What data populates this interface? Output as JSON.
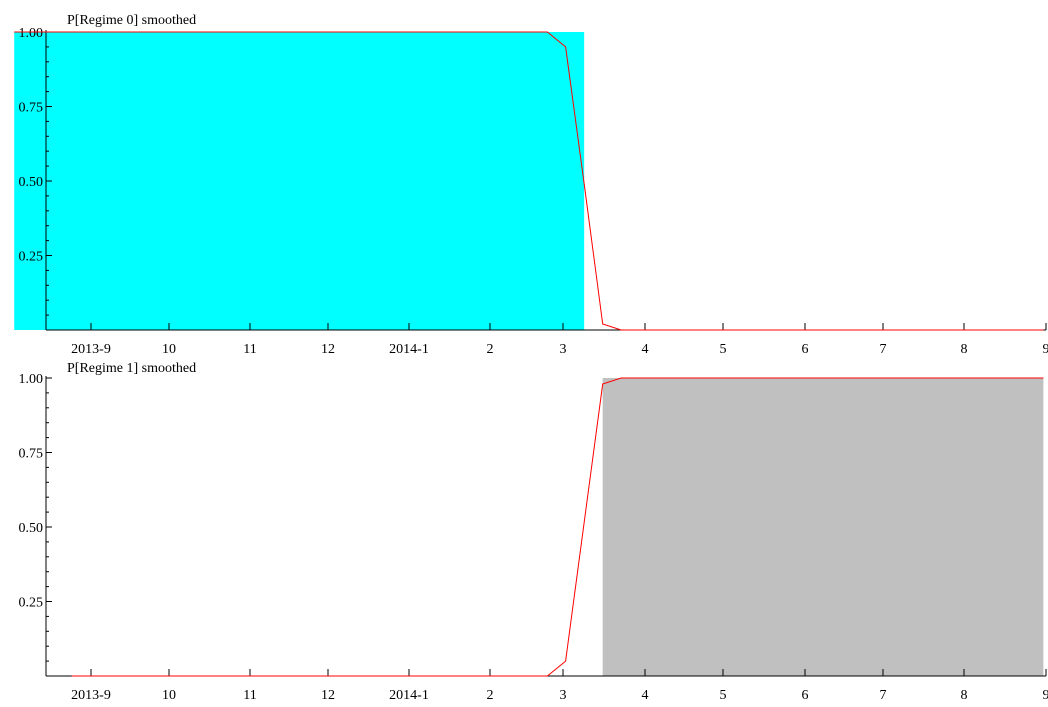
{
  "chart_data": [
    {
      "type": "line",
      "title": "P[Regime 0] smoothed",
      "xlabel": "",
      "ylabel": "",
      "ylim": [
        0,
        1
      ],
      "yticks": [
        0.25,
        0.5,
        0.75,
        1.0
      ],
      "ytick_labels": [
        "0.25",
        "0.50",
        "0.75",
        "1.00"
      ],
      "xticks": [
        "2013-09",
        "2013-10",
        "2013-11",
        "2013-12",
        "2014-01",
        "2014-02",
        "2014-03",
        "2014-04",
        "2014-05",
        "2014-06",
        "2014-07",
        "2014-08",
        "2014-09"
      ],
      "xtick_labels": [
        "2013-9",
        "10",
        "11",
        "12",
        "2014-1",
        "2",
        "3",
        "4",
        "5",
        "6",
        "7",
        "8",
        "9"
      ],
      "shaded_regions": [
        {
          "start": "2013-08-04",
          "end": "2014-03-09",
          "color": "#00ffff"
        }
      ],
      "series": [
        {
          "color": "#ff0000",
          "x": [
            "2013-08-04",
            "2014-02-23",
            "2014-03-02",
            "2014-03-09",
            "2014-03-16",
            "2014-03-23",
            "2014-08-31"
          ],
          "values": [
            1.0,
            1.0,
            0.95,
            0.49,
            0.02,
            0.0,
            0.0
          ]
        }
      ]
    },
    {
      "type": "line",
      "title": "P[Regime 1] smoothed",
      "xlabel": "",
      "ylabel": "",
      "ylim": [
        0,
        1
      ],
      "yticks": [
        0.25,
        0.5,
        0.75,
        1.0
      ],
      "ytick_labels": [
        "0.25",
        "0.50",
        "0.75",
        "1.00"
      ],
      "xticks": [
        "2013-09",
        "2013-10",
        "2013-11",
        "2013-12",
        "2014-01",
        "2014-02",
        "2014-03",
        "2014-04",
        "2014-05",
        "2014-06",
        "2014-07",
        "2014-08",
        "2014-09"
      ],
      "xtick_labels": [
        "2013-9",
        "10",
        "11",
        "12",
        "2014-1",
        "2",
        "3",
        "4",
        "5",
        "6",
        "7",
        "8",
        "9"
      ],
      "shaded_regions": [
        {
          "start": "2014-03-16",
          "end": "2014-08-31",
          "color": "#c0c0c0"
        }
      ],
      "series": [
        {
          "color": "#ff0000",
          "x": [
            "2013-08-25",
            "2014-02-23",
            "2014-03-02",
            "2014-03-16",
            "2014-03-23",
            "2014-03-30",
            "2014-08-31"
          ],
          "values": [
            0.0,
            0.0,
            0.05,
            0.98,
            1.0,
            1.0,
            1.0
          ]
        }
      ]
    }
  ]
}
